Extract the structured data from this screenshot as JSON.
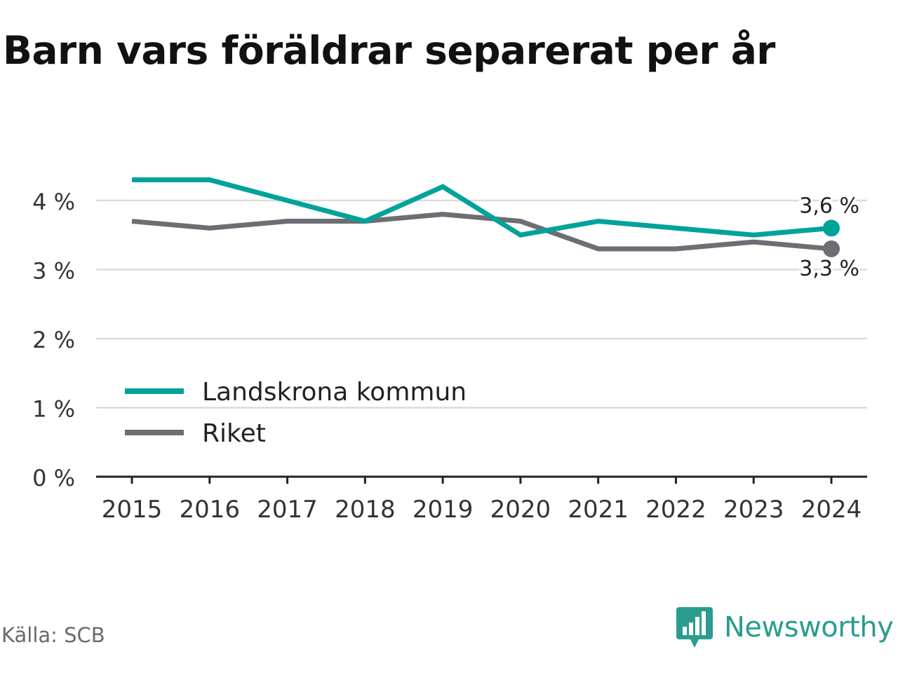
{
  "chart_data": {
    "type": "line",
    "title": "Barn vars föräldrar separerat per år",
    "categories": [
      "2015",
      "2016",
      "2017",
      "2018",
      "2019",
      "2020",
      "2021",
      "2022",
      "2023",
      "2024"
    ],
    "series": [
      {
        "name": "Landskrona kommun",
        "color": "#00a39a",
        "values": [
          4.3,
          4.3,
          4.0,
          3.7,
          4.2,
          3.5,
          3.7,
          3.6,
          3.5,
          3.6
        ]
      },
      {
        "name": "Riket",
        "color": "#6d6d74",
        "values": [
          3.7,
          3.6,
          3.7,
          3.7,
          3.8,
          3.7,
          3.3,
          3.3,
          3.4,
          3.3
        ]
      }
    ],
    "y_ticks": [
      0,
      1,
      2,
      3,
      4
    ],
    "y_tick_labels": [
      "0 %",
      "1 %",
      "2 %",
      "3 %",
      "4 %"
    ],
    "ylim": [
      0,
      4.3
    ],
    "end_labels": [
      "3,6 %",
      "3,3 %"
    ],
    "grid": true,
    "legend_position": "bottom-left"
  },
  "footer": {
    "source": "Källa: SCB",
    "brand": "Newsworthy",
    "brand_icon": "bar-chart-icon"
  }
}
